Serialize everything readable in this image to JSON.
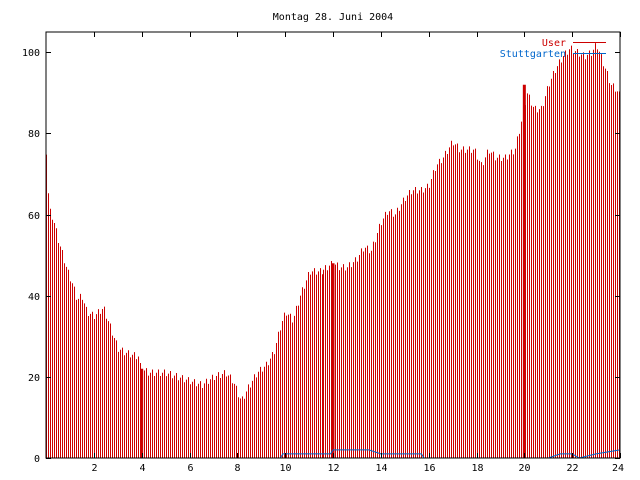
{
  "chart_data": {
    "type": "bar",
    "title": "Montag 28. Juni 2004",
    "xlabel": "",
    "ylabel": "",
    "xlim": [
      0,
      24
    ],
    "ylim": [
      0,
      105
    ],
    "x_ticks": [
      2,
      4,
      6,
      8,
      10,
      12,
      14,
      16,
      18,
      20,
      22,
      24
    ],
    "y_ticks": [
      0,
      20,
      40,
      60,
      80,
      100
    ],
    "grid": false,
    "legend_position": "top-right",
    "colors": {
      "user": "#cc0000",
      "stuttgarten": "#0066cc"
    },
    "series": [
      {
        "name": "User",
        "anchors": [
          [
            0.0,
            77
          ],
          [
            0.07,
            67
          ],
          [
            0.15,
            61
          ],
          [
            0.3,
            59
          ],
          [
            0.5,
            54
          ],
          [
            0.7,
            50
          ],
          [
            0.9,
            46
          ],
          [
            1.1,
            43
          ],
          [
            1.3,
            39
          ],
          [
            1.5,
            40
          ],
          [
            1.7,
            36
          ],
          [
            2.0,
            35
          ],
          [
            2.4,
            37
          ],
          [
            2.7,
            32
          ],
          [
            3.0,
            27
          ],
          [
            3.3,
            26
          ],
          [
            3.85,
            25
          ],
          [
            3.95,
            22
          ],
          [
            4.3,
            21
          ],
          [
            5.0,
            21
          ],
          [
            5.5,
            20
          ],
          [
            6.0,
            19
          ],
          [
            6.5,
            18
          ],
          [
            7.0,
            20
          ],
          [
            7.5,
            21
          ],
          [
            7.8,
            19
          ],
          [
            8.0,
            16
          ],
          [
            8.15,
            14
          ],
          [
            8.4,
            17
          ],
          [
            8.8,
            21
          ],
          [
            9.2,
            23
          ],
          [
            9.5,
            26
          ],
          [
            9.8,
            33
          ],
          [
            10.0,
            36
          ],
          [
            10.3,
            34
          ],
          [
            10.6,
            40
          ],
          [
            11.0,
            46
          ],
          [
            11.5,
            46
          ],
          [
            12.0,
            48
          ],
          [
            12.3,
            47
          ],
          [
            12.6,
            47
          ],
          [
            13.0,
            49
          ],
          [
            13.3,
            52
          ],
          [
            13.6,
            51
          ],
          [
            14.0,
            58
          ],
          [
            14.3,
            61
          ],
          [
            14.6,
            60
          ],
          [
            15.0,
            64
          ],
          [
            15.3,
            66
          ],
          [
            15.7,
            66
          ],
          [
            16.0,
            67
          ],
          [
            16.3,
            72
          ],
          [
            16.6,
            74
          ],
          [
            17.0,
            78
          ],
          [
            17.3,
            76
          ],
          [
            17.6,
            76
          ],
          [
            17.9,
            76
          ],
          [
            18.2,
            72
          ],
          [
            18.5,
            76
          ],
          [
            18.8,
            74
          ],
          [
            19.2,
            74
          ],
          [
            19.6,
            76
          ],
          [
            19.9,
            84
          ],
          [
            20.1,
            90
          ],
          [
            20.4,
            86
          ],
          [
            20.7,
            86
          ],
          [
            21.0,
            92
          ],
          [
            21.3,
            96
          ],
          [
            21.6,
            99
          ],
          [
            21.9,
            101
          ],
          [
            22.2,
            100
          ],
          [
            22.5,
            99
          ],
          [
            22.8,
            100
          ],
          [
            23.0,
            102
          ],
          [
            23.3,
            97
          ],
          [
            23.6,
            92
          ],
          [
            23.8,
            91
          ],
          [
            24.0,
            89
          ]
        ],
        "spikes": [
          [
            4.0,
            22
          ],
          [
            12.0,
            48
          ],
          [
            20.0,
            92
          ]
        ]
      },
      {
        "name": "Stuttgarten",
        "points": [
          [
            0,
            0
          ],
          [
            9.8,
            0
          ],
          [
            9.9,
            1
          ],
          [
            11.9,
            1
          ],
          [
            12.0,
            2
          ],
          [
            13.2,
            2
          ],
          [
            13.5,
            2
          ],
          [
            14.0,
            1
          ],
          [
            15.7,
            1
          ],
          [
            15.8,
            0
          ],
          [
            21.0,
            0
          ],
          [
            21.5,
            1
          ],
          [
            22.0,
            1
          ],
          [
            22.3,
            0
          ],
          [
            23.0,
            1
          ],
          [
            24.0,
            2
          ]
        ]
      }
    ]
  }
}
